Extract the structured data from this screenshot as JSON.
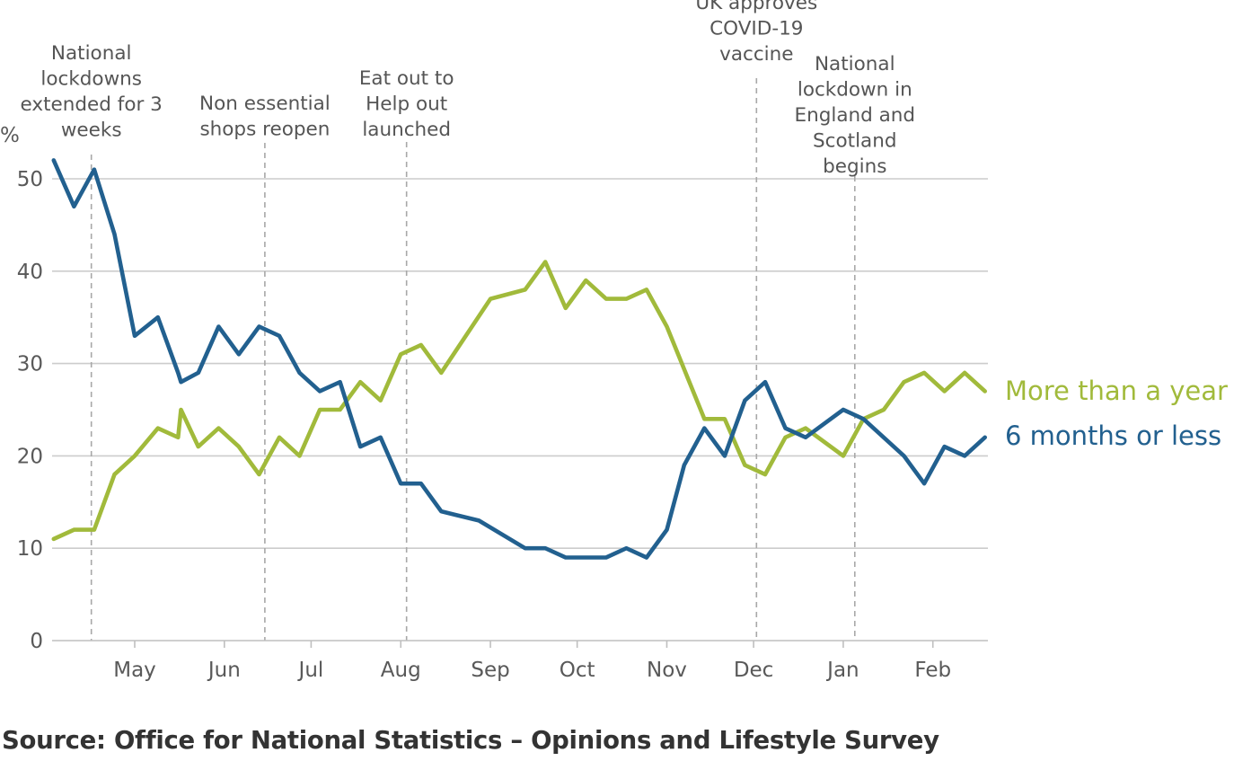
{
  "chart_data": {
    "type": "line",
    "y_unit_label": "%",
    "ylim": [
      0,
      52
    ],
    "y_ticks": [
      0,
      10,
      20,
      30,
      40,
      50
    ],
    "x_ticks": [
      "May",
      "Jun",
      "Jul",
      "Aug",
      "Sep",
      "Oct",
      "Nov",
      "Dec",
      "Jan",
      "Feb"
    ],
    "grid": "horizontal",
    "legend_placement": "right, at line ends",
    "series": [
      {
        "name": "More than a year",
        "color": "#a1ba3b",
        "points": [
          [
            "2020-04-03",
            11
          ],
          [
            "2020-04-10",
            12
          ],
          [
            "2020-04-17",
            12
          ],
          [
            "2020-04-24",
            18
          ],
          [
            "2020-05-01",
            20
          ],
          [
            "2020-05-09",
            23
          ],
          [
            "2020-05-16",
            22
          ],
          [
            "2020-05-17",
            25
          ],
          [
            "2020-05-23",
            21
          ],
          [
            "2020-05-30",
            23
          ],
          [
            "2020-06-06",
            21
          ],
          [
            "2020-06-13",
            18
          ],
          [
            "2020-06-20",
            22
          ],
          [
            "2020-06-27",
            20
          ],
          [
            "2020-07-04",
            25
          ],
          [
            "2020-07-11",
            25
          ],
          [
            "2020-07-18",
            28
          ],
          [
            "2020-07-25",
            26
          ],
          [
            "2020-08-01",
            31
          ],
          [
            "2020-08-08",
            32
          ],
          [
            "2020-08-15",
            29
          ],
          [
            "2020-09-01",
            37
          ],
          [
            "2020-09-13",
            38
          ],
          [
            "2020-09-20",
            41
          ],
          [
            "2020-09-27",
            36
          ],
          [
            "2020-10-04",
            39
          ],
          [
            "2020-10-11",
            37
          ],
          [
            "2020-10-18",
            37
          ],
          [
            "2020-10-25",
            38
          ],
          [
            "2020-11-01",
            34
          ],
          [
            "2020-11-14",
            24
          ],
          [
            "2020-11-21",
            24
          ],
          [
            "2020-11-28",
            19
          ],
          [
            "2020-12-05",
            18
          ],
          [
            "2020-12-12",
            22
          ],
          [
            "2020-12-19",
            23
          ],
          [
            "2021-01-01",
            20
          ],
          [
            "2021-01-08",
            24
          ],
          [
            "2021-01-15",
            25
          ],
          [
            "2021-01-22",
            28
          ],
          [
            "2021-01-29",
            29
          ],
          [
            "2021-02-05",
            27
          ],
          [
            "2021-02-12",
            29
          ],
          [
            "2021-02-19",
            27
          ]
        ]
      },
      {
        "name": "6 months or less",
        "color": "#22608f",
        "points": [
          [
            "2020-04-03",
            52
          ],
          [
            "2020-04-10",
            47
          ],
          [
            "2020-04-17",
            51
          ],
          [
            "2020-04-24",
            44
          ],
          [
            "2020-05-01",
            33
          ],
          [
            "2020-05-09",
            35
          ],
          [
            "2020-05-16",
            29
          ],
          [
            "2020-05-17",
            28
          ],
          [
            "2020-05-23",
            29
          ],
          [
            "2020-05-30",
            34
          ],
          [
            "2020-06-06",
            31
          ],
          [
            "2020-06-13",
            34
          ],
          [
            "2020-06-20",
            33
          ],
          [
            "2020-06-27",
            29
          ],
          [
            "2020-07-04",
            27
          ],
          [
            "2020-07-11",
            28
          ],
          [
            "2020-07-18",
            21
          ],
          [
            "2020-07-25",
            22
          ],
          [
            "2020-08-01",
            17
          ],
          [
            "2020-08-08",
            17
          ],
          [
            "2020-08-15",
            14
          ],
          [
            "2020-08-28",
            13
          ],
          [
            "2020-09-13",
            10
          ],
          [
            "2020-09-20",
            10
          ],
          [
            "2020-09-27",
            9
          ],
          [
            "2020-10-11",
            9
          ],
          [
            "2020-10-18",
            10
          ],
          [
            "2020-10-25",
            9
          ],
          [
            "2020-11-01",
            12
          ],
          [
            "2020-11-07",
            19
          ],
          [
            "2020-11-14",
            23
          ],
          [
            "2020-11-21",
            20
          ],
          [
            "2020-11-28",
            26
          ],
          [
            "2020-12-05",
            28
          ],
          [
            "2020-12-12",
            23
          ],
          [
            "2020-12-19",
            22
          ],
          [
            "2021-01-01",
            25
          ],
          [
            "2021-01-08",
            24
          ],
          [
            "2021-01-22",
            20
          ],
          [
            "2021-01-29",
            17
          ],
          [
            "2021-02-05",
            21
          ],
          [
            "2021-02-12",
            20
          ],
          [
            "2021-02-19",
            22
          ]
        ]
      }
    ],
    "annotations": [
      {
        "date": "2020-04-16",
        "label_lines": [
          "National",
          "lockdowns",
          "extended for 3",
          "weeks"
        ]
      },
      {
        "date": "2020-06-15",
        "label_lines": [
          "Non essential",
          "shops reopen"
        ]
      },
      {
        "date": "2020-08-03",
        "label_lines": [
          "Eat out to",
          "Help out",
          "launched"
        ]
      },
      {
        "date": "2020-12-02",
        "label_lines": [
          "UK approves",
          "COVID-19",
          "vaccine"
        ]
      },
      {
        "date": "2021-01-05",
        "label_lines": [
          "National",
          "lockdown in",
          "England and",
          "Scotland",
          "begins"
        ]
      }
    ]
  },
  "footer": {
    "source": "Source: Office for National Statistics – Opinions and Lifestyle Survey"
  }
}
